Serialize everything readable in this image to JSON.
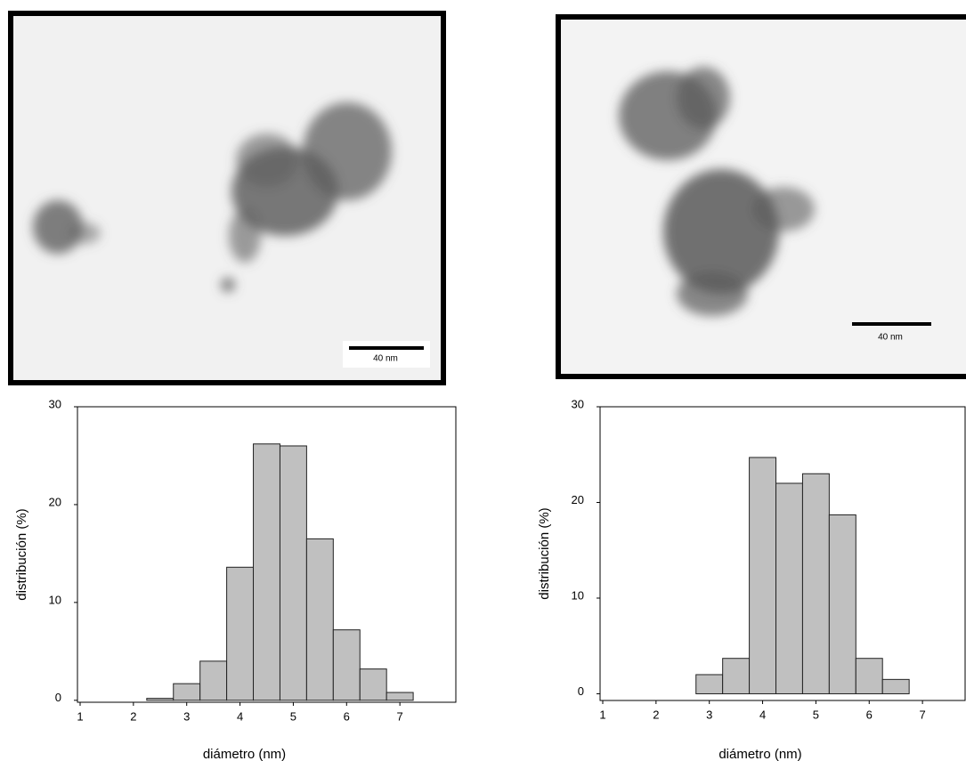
{
  "chart_data": [
    {
      "type": "histogram",
      "bins": [
        2.25,
        2.75,
        3.25,
        3.75,
        4.25,
        4.75,
        5.25,
        5.75,
        6.25,
        6.75,
        7.25
      ],
      "values": [
        0.2,
        1.7,
        4,
        13.6,
        26.2,
        26,
        16.5,
        7.2,
        3.2,
        0.8
      ],
      "color": "#c0c0c0",
      "xlabel": "diámetro (nm)",
      "ylabel": "distribución (%)",
      "xlim": [
        0.95,
        8.05
      ],
      "ylim": [
        -0.2,
        30
      ],
      "xticks": [
        1,
        2,
        3,
        4,
        5,
        6,
        7
      ],
      "yticks": [
        0,
        10,
        20,
        30
      ]
    },
    {
      "type": "histogram",
      "bins": [
        2.75,
        3.25,
        3.75,
        4.25,
        4.75,
        5.25,
        5.75,
        6.25,
        6.75
      ],
      "values": [
        2,
        3.7,
        24.7,
        22,
        23,
        18.7,
        3.7,
        1.5
      ],
      "color": "#c0c0c0",
      "xlabel": "diámetro (nm)",
      "ylabel": "distribución (%)",
      "xlim": [
        0.95,
        7.8
      ],
      "ylim": [
        -0.7,
        30
      ],
      "xticks": [
        1,
        2,
        3,
        4,
        5,
        6,
        7
      ],
      "yticks": [
        0,
        10,
        20,
        30
      ]
    }
  ],
  "images": [
    {
      "scale_bar": "40 nm"
    },
    {
      "scale_bar": "40 nm"
    }
  ]
}
